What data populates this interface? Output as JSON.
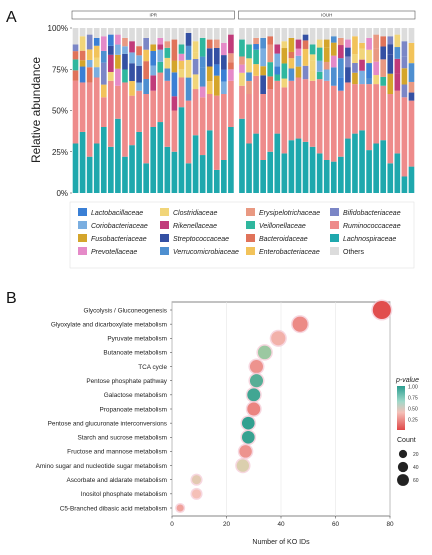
{
  "panel_letters": [
    "A",
    "B"
  ],
  "chart_data": [
    {
      "type": "bar",
      "stacked": true,
      "ylabel": "Relative abundance",
      "ytick_labels": [
        "0%",
        "25%",
        "50%",
        "75%",
        "100%"
      ],
      "ylim": [
        0,
        100
      ],
      "facets": [
        {
          "label": "IPR",
          "samples": 23
        },
        {
          "label": "IOUH",
          "samples": 25
        }
      ],
      "legend_position": "bottom",
      "series": [
        {
          "name": "Lactobacillaceae",
          "color": "#3a7fd5"
        },
        {
          "name": "Coriobacteriaceae",
          "color": "#7aaee0"
        },
        {
          "name": "Fusobacteriaceae",
          "color": "#d4a52b"
        },
        {
          "name": "Prevotellaceae",
          "color": "#e58ac8"
        },
        {
          "name": "Clostridiaceae",
          "color": "#f1d579"
        },
        {
          "name": "Rikenellaceae",
          "color": "#c13b7a"
        },
        {
          "name": "Streptococcaceae",
          "color": "#3450a3"
        },
        {
          "name": "Verrucomicrobiaceae",
          "color": "#4e8fd0"
        },
        {
          "name": "Erysipelotrichaceae",
          "color": "#e99982"
        },
        {
          "name": "Veillonellaceae",
          "color": "#2fb79e"
        },
        {
          "name": "Bacteroidaceae",
          "color": "#e0735a"
        },
        {
          "name": "Enterobacteriaceae",
          "color": "#f2c35a"
        },
        {
          "name": "Bifidobacteriaceae",
          "color": "#7b86c6"
        },
        {
          "name": "Ruminococcaceae",
          "color": "#ee8b8b"
        },
        {
          "name": "Lachnospiraceae",
          "color": "#1fa8ad"
        },
        {
          "name": "Others",
          "color": "#dcdcdc"
        }
      ],
      "samples_lachnospiraceae_pct": [
        30,
        37,
        22,
        30,
        40,
        28,
        45,
        22,
        29,
        37,
        18,
        40,
        43,
        28,
        25,
        52,
        18,
        35,
        23,
        38,
        14,
        20,
        40,
        45,
        30,
        36,
        20,
        25,
        36,
        24,
        32,
        33,
        31,
        28,
        24,
        20,
        19,
        22,
        33,
        36,
        38,
        26,
        30,
        32,
        18,
        24,
        10,
        16
      ],
      "samples_ruminococcaceae_pct": [
        38,
        30,
        45,
        40,
        18,
        40,
        20,
        45,
        30,
        25,
        42,
        22,
        30,
        40,
        25,
        18,
        38,
        28,
        35,
        22,
        45,
        40,
        28,
        20,
        30,
        35,
        40,
        38,
        32,
        40,
        36,
        37,
        38,
        40,
        45,
        48,
        46,
        40,
        34,
        30,
        28,
        40,
        36,
        33,
        42,
        38,
        48,
        40
      ]
    },
    {
      "type": "scatter",
      "title": "",
      "xlabel": "Number of KO IDs",
      "xlim": [
        0,
        80
      ],
      "xticks": [
        0,
        20,
        40,
        60,
        80
      ],
      "categories": [
        "Glycolysis / Gluconeogenesis",
        "Glyoxylate and dicarboxylate metabolism",
        "Pyruvate metabolism",
        "Butanoate metabolism",
        "TCA cycle",
        "Pentose phosphate pathway",
        "Galactose metabolism",
        "Propanoate metabolism",
        "Pentose and glucuronate interconversions",
        "Starch and sucrose metabolism",
        "Fructose and mannose metabolism",
        "Amino sugar and nucleotide sugar metabolism",
        "Ascorbate and aldarate metabolism",
        "Inositol phosphate metabolism",
        "C5-Branched dibasic acid metabolism"
      ],
      "values": [
        77,
        47,
        39,
        34,
        31,
        31,
        30,
        30,
        28,
        28,
        27,
        26,
        9,
        9,
        3
      ],
      "pvalues": [
        0.02,
        0.22,
        0.35,
        0.75,
        0.25,
        0.9,
        0.95,
        0.2,
        0.98,
        0.97,
        0.25,
        0.55,
        0.5,
        0.4,
        0.3
      ],
      "legend": {
        "color_title": "p-value",
        "color_ticks": [
          "1.00",
          "0.75",
          "0.50",
          "0.25"
        ],
        "color_tick_values": [
          1.0,
          0.75,
          0.5,
          0.25
        ],
        "size_title": "Count",
        "size_ticks": [
          "20",
          "40",
          "60"
        ],
        "size_values": [
          20,
          40,
          60
        ]
      }
    }
  ]
}
